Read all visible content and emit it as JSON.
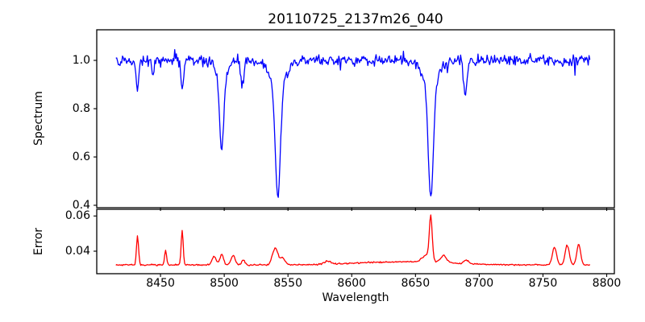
{
  "figure": {
    "title": "20110725_2137m26_040",
    "background_color": "#ffffff",
    "frame_color": "#000000"
  },
  "chart_data": [
    {
      "type": "line",
      "name": "spectrum",
      "title": "20110725_2137m26_040",
      "ylabel": "Spectrum",
      "line_color": "#0000ff",
      "xlim": [
        8400,
        8806
      ],
      "ylim": [
        0.39,
        1.1267
      ],
      "yticks": {
        "values": [
          0.4,
          0.6,
          0.8,
          1.0
        ],
        "labels": [
          "0.4",
          "0.6",
          "0.8",
          "1.0"
        ]
      },
      "x_data_range": [
        8415,
        8787
      ],
      "x_step": 0.65,
      "continuum": 1.0,
      "noise_fraction": 0.033,
      "outlier_probability": 0.035,
      "absorption_lines": [
        {
          "center": 8432,
          "depth": 0.13,
          "sigma": 1.0
        },
        {
          "center": 8444,
          "depth": 0.065,
          "sigma": 0.9
        },
        {
          "center": 8467,
          "depth": 0.125,
          "sigma": 1.0
        },
        {
          "center": 8498,
          "depth": 0.3,
          "sigma": 1.6
        },
        {
          "center": 8498,
          "depth": 0.07,
          "sigma": 5.0
        },
        {
          "center": 8514,
          "depth": 0.115,
          "sigma": 1.2
        },
        {
          "center": 8542,
          "depth": 0.47,
          "sigma": 2.0
        },
        {
          "center": 8542,
          "depth": 0.1,
          "sigma": 6.0
        },
        {
          "center": 8662,
          "depth": 0.465,
          "sigma": 2.0
        },
        {
          "center": 8662,
          "depth": 0.1,
          "sigma": 6.0
        },
        {
          "center": 8689,
          "depth": 0.145,
          "sigma": 1.3
        }
      ]
    },
    {
      "type": "line",
      "name": "error",
      "ylabel": "Error",
      "xlabel": "Wavelength",
      "line_color": "#ff0000",
      "xlim": [
        8400,
        8806
      ],
      "ylim": [
        0.0272,
        0.0638
      ],
      "yticks": {
        "values": [
          0.04,
          0.06
        ],
        "labels": [
          "0.04",
          "0.06"
        ]
      },
      "xticks": {
        "values": [
          8450,
          8500,
          8550,
          8600,
          8650,
          8700,
          8750,
          8800
        ],
        "labels": [
          "8450",
          "8500",
          "8550",
          "8600",
          "8650",
          "8700",
          "8750",
          "8800"
        ]
      },
      "x_data_range": [
        8415,
        8787
      ],
      "x_step": 0.65,
      "baseline": 0.0322,
      "noise_absolute": 0.0006,
      "broad_bump": {
        "center": 8640,
        "height": 0.0018,
        "sigma": 35
      },
      "error_peaks": [
        {
          "center": 8432,
          "height": 0.0165,
          "sigma": 0.8
        },
        {
          "center": 8454,
          "height": 0.0082,
          "sigma": 0.8
        },
        {
          "center": 8467,
          "height": 0.0195,
          "sigma": 0.8
        },
        {
          "center": 8492,
          "height": 0.005,
          "sigma": 1.6
        },
        {
          "center": 8498,
          "height": 0.006,
          "sigma": 1.4
        },
        {
          "center": 8507,
          "height": 0.0055,
          "sigma": 1.6
        },
        {
          "center": 8515,
          "height": 0.0028,
          "sigma": 1.2
        },
        {
          "center": 8540,
          "height": 0.0095,
          "sigma": 2.2
        },
        {
          "center": 8546,
          "height": 0.0038,
          "sigma": 1.8
        },
        {
          "center": 8581,
          "height": 0.0018,
          "sigma": 2.5
        },
        {
          "center": 8659,
          "height": 0.004,
          "sigma": 3.5
        },
        {
          "center": 8662,
          "height": 0.024,
          "sigma": 1.1
        },
        {
          "center": 8672,
          "height": 0.0042,
          "sigma": 2.2
        },
        {
          "center": 8690,
          "height": 0.0022,
          "sigma": 1.8
        },
        {
          "center": 8759,
          "height": 0.0102,
          "sigma": 1.6
        },
        {
          "center": 8769,
          "height": 0.0112,
          "sigma": 1.6
        },
        {
          "center": 8778,
          "height": 0.0118,
          "sigma": 1.5
        }
      ],
      "seed": 42
    }
  ]
}
